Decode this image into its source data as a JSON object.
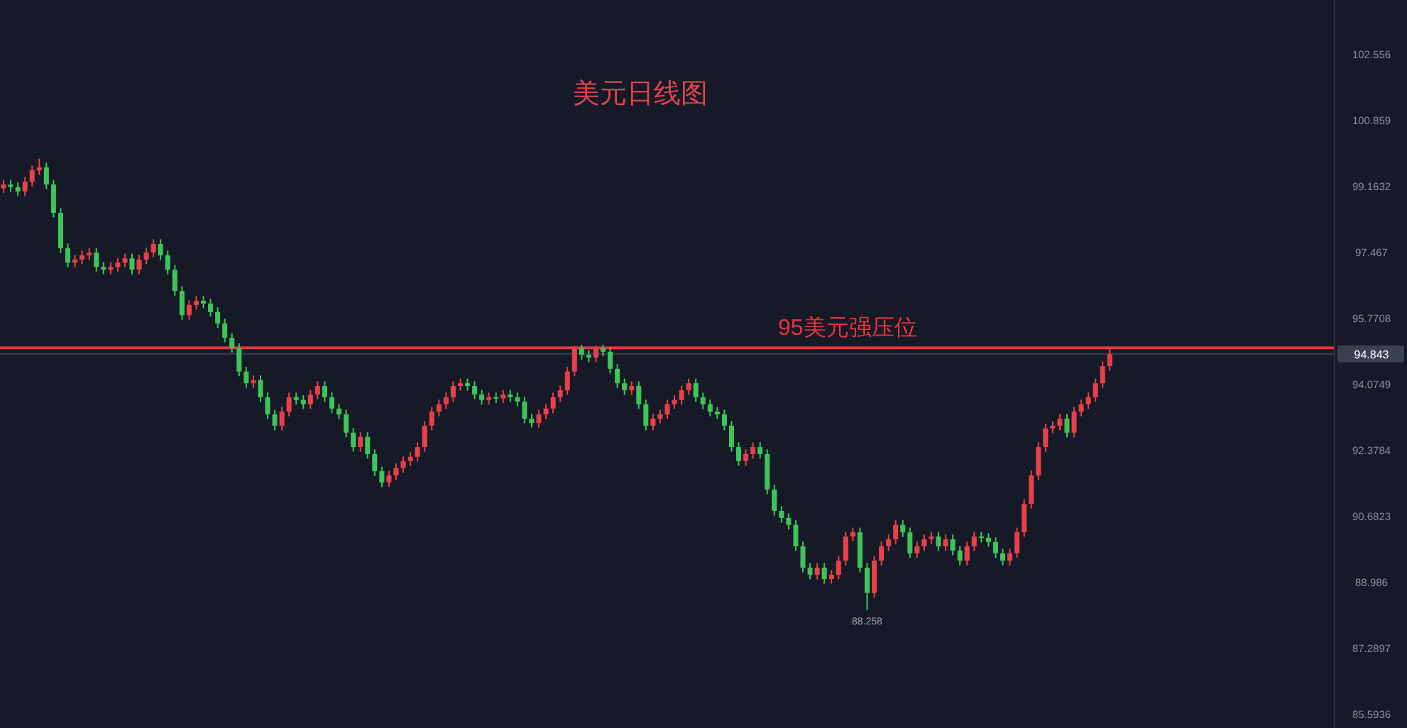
{
  "chart_data": {
    "type": "candlestick",
    "title": "美元日线图",
    "tick_labels": "y",
    "ylim": [
      85.23,
      103.94
    ],
    "yticks": [
      85.5936,
      87.2897,
      88.986,
      90.6823,
      92.3784,
      94.0749,
      94.843,
      95.7708,
      97.467,
      99.1632,
      100.859,
      102.556
    ],
    "ref_lines": [
      {
        "axis": "y",
        "value": 94.843,
        "color": "#3a3f4f"
      },
      {
        "axis": "y",
        "value": 95,
        "label": "95美元强压位",
        "color": "#e8353f"
      }
    ],
    "annotations": [
      "88.258"
    ],
    "categories": [
      null,
      null,
      null,
      null,
      null,
      null,
      null,
      null,
      null,
      null,
      null,
      null,
      null,
      null,
      null,
      null,
      null,
      null,
      null,
      null,
      null,
      null,
      null,
      null,
      null,
      null,
      null,
      null,
      null,
      null,
      null,
      null,
      null,
      null,
      null,
      null,
      null,
      null,
      null,
      null,
      null,
      null,
      null,
      null,
      null,
      null,
      null,
      null,
      null,
      null,
      null,
      null,
      null,
      null,
      null,
      null,
      null,
      null,
      null,
      null,
      null,
      null,
      null,
      null,
      null,
      null,
      null,
      null,
      null,
      null,
      null,
      null,
      null,
      null,
      null,
      null,
      null,
      null,
      null,
      null,
      null,
      null,
      null,
      null,
      null,
      null,
      null,
      null,
      null,
      null,
      null,
      null,
      null,
      null,
      null,
      null,
      null,
      null,
      null,
      null,
      null,
      null,
      null,
      null,
      null,
      null,
      null,
      null,
      null,
      null,
      null,
      null,
      null,
      null,
      null,
      null,
      null,
      null,
      null,
      null,
      null,
      null,
      null,
      null,
      null,
      null,
      null,
      null,
      null,
      null,
      null,
      null,
      null,
      null,
      null,
      null,
      null,
      null,
      null,
      null,
      null,
      null,
      null,
      null,
      null,
      null,
      null,
      null,
      null,
      null,
      null,
      null,
      null,
      null,
      null,
      null,
      null,
      null,
      null,
      null,
      null,
      null,
      null,
      null,
      null,
      null,
      null,
      null,
      null,
      null,
      null,
      null,
      null,
      null,
      null,
      null,
      null,
      null,
      null,
      null,
      null,
      null,
      null,
      null,
      null,
      null,
      null
    ],
    "ohlc": [
      [
        99.1,
        99.32,
        98.98,
        99.2
      ],
      [
        99.2,
        99.32,
        99.01,
        99.13
      ],
      [
        99.13,
        99.25,
        98.9,
        99.02
      ],
      [
        99.02,
        99.39,
        98.9,
        99.27
      ],
      [
        99.27,
        99.68,
        99.15,
        99.56
      ],
      [
        99.56,
        99.86,
        99.44,
        99.64
      ],
      [
        99.64,
        99.76,
        99.08,
        99.2
      ],
      [
        99.2,
        99.32,
        98.35,
        98.47
      ],
      [
        98.47,
        98.59,
        97.44,
        97.56
      ],
      [
        97.56,
        97.68,
        97.07,
        97.19
      ],
      [
        97.19,
        97.39,
        97.07,
        97.27
      ],
      [
        97.27,
        97.5,
        97.15,
        97.38
      ],
      [
        97.38,
        97.57,
        97.26,
        97.45
      ],
      [
        97.45,
        97.57,
        96.96,
        97.08
      ],
      [
        97.08,
        97.2,
        96.89,
        97.01
      ],
      [
        97.01,
        97.2,
        96.89,
        97.08
      ],
      [
        97.08,
        97.31,
        96.96,
        97.19
      ],
      [
        97.19,
        97.42,
        97.07,
        97.3
      ],
      [
        97.3,
        97.42,
        96.89,
        97.01
      ],
      [
        97.01,
        97.39,
        96.89,
        97.27
      ],
      [
        97.27,
        97.57,
        97.15,
        97.45
      ],
      [
        97.45,
        97.79,
        97.33,
        97.67
      ],
      [
        97.67,
        97.79,
        97.26,
        97.38
      ],
      [
        97.38,
        97.5,
        96.89,
        97.01
      ],
      [
        97.01,
        97.13,
        96.34,
        96.46
      ],
      [
        96.46,
        96.58,
        95.72,
        95.84
      ],
      [
        95.84,
        96.22,
        95.72,
        96.1
      ],
      [
        96.1,
        96.33,
        95.98,
        96.21
      ],
      [
        96.21,
        96.33,
        96.02,
        96.14
      ],
      [
        96.14,
        96.26,
        95.8,
        95.92
      ],
      [
        95.92,
        96.04,
        95.51,
        95.63
      ],
      [
        95.63,
        95.75,
        95.14,
        95.26
      ],
      [
        95.26,
        95.38,
        94.88,
        95.0
      ],
      [
        95.0,
        95.12,
        94.27,
        94.39
      ],
      [
        94.39,
        94.51,
        93.97,
        94.09
      ],
      [
        94.09,
        94.29,
        93.97,
        94.17
      ],
      [
        94.17,
        94.29,
        93.61,
        93.73
      ],
      [
        93.73,
        93.85,
        93.17,
        93.29
      ],
      [
        93.29,
        93.41,
        92.88,
        93.0
      ],
      [
        93.0,
        93.48,
        92.88,
        93.36
      ],
      [
        93.36,
        93.85,
        93.24,
        93.73
      ],
      [
        93.73,
        93.85,
        93.54,
        93.66
      ],
      [
        93.66,
        93.78,
        93.43,
        93.55
      ],
      [
        93.55,
        93.92,
        93.43,
        93.8
      ],
      [
        93.8,
        94.14,
        93.68,
        94.02
      ],
      [
        94.02,
        94.14,
        93.61,
        93.73
      ],
      [
        93.73,
        93.85,
        93.32,
        93.44
      ],
      [
        93.44,
        93.56,
        93.17,
        93.29
      ],
      [
        93.29,
        93.41,
        92.7,
        92.82
      ],
      [
        92.82,
        92.94,
        92.33,
        92.45
      ],
      [
        92.45,
        92.83,
        92.33,
        92.71
      ],
      [
        92.71,
        92.83,
        92.15,
        92.27
      ],
      [
        92.27,
        92.39,
        91.71,
        91.83
      ],
      [
        91.83,
        91.95,
        91.42,
        91.54
      ],
      [
        91.54,
        91.84,
        91.42,
        91.72
      ],
      [
        91.72,
        92.03,
        91.6,
        91.91
      ],
      [
        91.91,
        92.21,
        91.79,
        92.09
      ],
      [
        92.09,
        92.32,
        91.97,
        92.2
      ],
      [
        92.2,
        92.57,
        92.08,
        92.45
      ],
      [
        92.45,
        93.12,
        92.33,
        93.0
      ],
      [
        93.0,
        93.48,
        92.88,
        93.36
      ],
      [
        93.36,
        93.67,
        93.24,
        93.55
      ],
      [
        93.55,
        93.85,
        93.43,
        93.73
      ],
      [
        93.73,
        94.14,
        93.61,
        94.02
      ],
      [
        94.02,
        94.21,
        93.9,
        94.09
      ],
      [
        94.09,
        94.21,
        93.9,
        94.02
      ],
      [
        94.02,
        94.14,
        93.68,
        93.8
      ],
      [
        93.8,
        93.92,
        93.54,
        93.66
      ],
      [
        93.66,
        93.85,
        93.54,
        93.73
      ],
      [
        93.73,
        93.85,
        93.58,
        93.7
      ],
      [
        93.7,
        93.92,
        93.58,
        93.8
      ],
      [
        93.8,
        93.92,
        93.61,
        93.73
      ],
      [
        93.73,
        93.85,
        93.5,
        93.62
      ],
      [
        93.62,
        93.74,
        93.06,
        93.18
      ],
      [
        93.18,
        93.3,
        92.95,
        93.07
      ],
      [
        93.07,
        93.41,
        92.95,
        93.29
      ],
      [
        93.29,
        93.56,
        93.17,
        93.44
      ],
      [
        93.44,
        93.85,
        93.32,
        93.73
      ],
      [
        93.73,
        94.03,
        93.61,
        93.91
      ],
      [
        93.91,
        94.51,
        93.79,
        94.39
      ],
      [
        94.39,
        95.05,
        94.27,
        95.0
      ],
      [
        95.0,
        95.08,
        94.7,
        94.82
      ],
      [
        94.82,
        94.94,
        94.63,
        94.75
      ],
      [
        94.75,
        95.06,
        94.63,
        95.0
      ],
      [
        95.0,
        95.08,
        94.78,
        94.9
      ],
      [
        94.9,
        95.02,
        94.34,
        94.46
      ],
      [
        94.46,
        94.58,
        93.97,
        94.09
      ],
      [
        94.09,
        94.21,
        93.79,
        93.91
      ],
      [
        93.91,
        94.14,
        93.79,
        94.02
      ],
      [
        94.02,
        94.14,
        93.43,
        93.55
      ],
      [
        93.55,
        93.67,
        92.88,
        93.0
      ],
      [
        93.0,
        93.3,
        92.88,
        93.18
      ],
      [
        93.18,
        93.41,
        93.06,
        93.29
      ],
      [
        93.29,
        93.67,
        93.17,
        93.55
      ],
      [
        93.55,
        93.78,
        93.43,
        93.66
      ],
      [
        93.66,
        94.03,
        93.54,
        93.91
      ],
      [
        93.91,
        94.21,
        93.79,
        94.09
      ],
      [
        94.09,
        94.21,
        93.61,
        93.73
      ],
      [
        93.73,
        93.85,
        93.43,
        93.55
      ],
      [
        93.55,
        93.67,
        93.24,
        93.36
      ],
      [
        93.36,
        93.48,
        93.17,
        93.29
      ],
      [
        93.29,
        93.41,
        92.88,
        93.0
      ],
      [
        93.0,
        93.12,
        92.33,
        92.45
      ],
      [
        92.45,
        92.57,
        91.97,
        92.09
      ],
      [
        92.09,
        92.39,
        91.97,
        92.27
      ],
      [
        92.27,
        92.57,
        92.15,
        92.45
      ],
      [
        92.45,
        92.57,
        92.15,
        92.27
      ],
      [
        92.27,
        92.39,
        91.24,
        91.36
      ],
      [
        91.36,
        91.48,
        90.69,
        90.81
      ],
      [
        90.81,
        90.93,
        90.51,
        90.63
      ],
      [
        90.63,
        90.75,
        90.33,
        90.45
      ],
      [
        90.45,
        90.57,
        89.78,
        89.9
      ],
      [
        89.9,
        90.02,
        89.23,
        89.35
      ],
      [
        89.35,
        89.47,
        89.05,
        89.17
      ],
      [
        89.17,
        89.47,
        89.05,
        89.35
      ],
      [
        89.35,
        89.47,
        88.94,
        89.06
      ],
      [
        89.06,
        89.29,
        88.94,
        89.17
      ],
      [
        89.17,
        89.65,
        89.05,
        89.53
      ],
      [
        89.53,
        90.27,
        89.41,
        90.15
      ],
      [
        90.15,
        90.38,
        90.03,
        90.26
      ],
      [
        90.26,
        90.38,
        89.23,
        89.35
      ],
      [
        89.35,
        89.47,
        88.258,
        88.7
      ],
      [
        88.7,
        89.65,
        88.58,
        89.53
      ],
      [
        89.53,
        90.02,
        89.41,
        89.9
      ],
      [
        89.9,
        90.2,
        89.78,
        90.08
      ],
      [
        90.08,
        90.57,
        89.96,
        90.45
      ],
      [
        90.45,
        90.57,
        90.14,
        90.26
      ],
      [
        90.26,
        90.38,
        89.6,
        89.72
      ],
      [
        89.72,
        90.02,
        89.6,
        89.9
      ],
      [
        89.9,
        90.2,
        89.78,
        90.08
      ],
      [
        90.08,
        90.27,
        89.96,
        90.15
      ],
      [
        90.15,
        90.27,
        89.78,
        89.9
      ],
      [
        89.9,
        90.2,
        89.78,
        90.08
      ],
      [
        90.08,
        90.2,
        89.67,
        89.79
      ],
      [
        89.79,
        89.91,
        89.41,
        89.53
      ],
      [
        89.53,
        90.02,
        89.41,
        89.9
      ],
      [
        89.9,
        90.27,
        89.78,
        90.15
      ],
      [
        90.15,
        90.27,
        90.0,
        90.12
      ],
      [
        90.12,
        90.24,
        89.89,
        90.01
      ],
      [
        90.01,
        90.13,
        89.6,
        89.72
      ],
      [
        89.72,
        89.84,
        89.41,
        89.53
      ],
      [
        89.53,
        89.84,
        89.41,
        89.72
      ],
      [
        89.72,
        90.38,
        89.6,
        90.26
      ],
      [
        90.26,
        91.11,
        90.14,
        90.99
      ],
      [
        90.99,
        91.84,
        90.87,
        91.72
      ],
      [
        91.72,
        92.57,
        91.6,
        92.45
      ],
      [
        92.45,
        93.05,
        92.33,
        92.93
      ],
      [
        92.93,
        93.12,
        92.81,
        93.0
      ],
      [
        93.0,
        93.3,
        92.88,
        93.18
      ],
      [
        93.18,
        93.3,
        92.7,
        92.82
      ],
      [
        92.82,
        93.48,
        92.7,
        93.36
      ],
      [
        93.36,
        93.67,
        93.24,
        93.55
      ],
      [
        93.55,
        93.85,
        93.43,
        93.73
      ],
      [
        93.73,
        94.21,
        93.61,
        94.09
      ],
      [
        94.09,
        94.65,
        93.97,
        94.53
      ],
      [
        94.53,
        95.0,
        94.41,
        94.843
      ],
      null,
      null,
      null,
      null,
      null,
      null,
      null,
      null,
      null,
      null,
      null,
      null,
      null,
      null,
      null,
      null,
      null,
      null,
      null,
      null,
      null,
      null,
      null,
      null,
      null,
      null,
      null,
      null,
      null,
      null,
      null
    ]
  }
}
